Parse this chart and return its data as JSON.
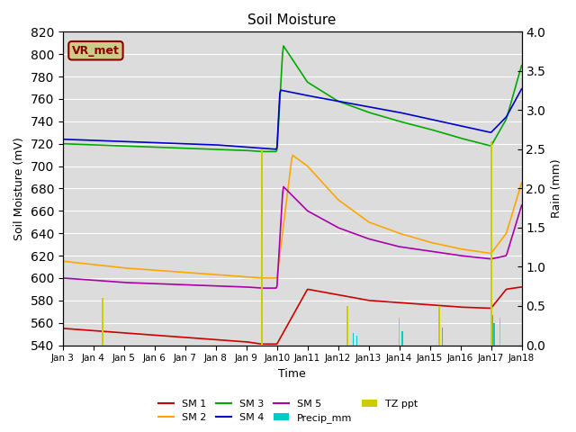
{
  "title": "Soil Moisture",
  "ylabel_left": "Soil Moisture (mV)",
  "ylabel_right": "Rain (mm)",
  "xlabel": "Time",
  "ylim_left": [
    540,
    820
  ],
  "ylim_right": [
    0.0,
    4.0
  ],
  "yticks_left": [
    540,
    560,
    580,
    600,
    620,
    640,
    660,
    680,
    700,
    720,
    740,
    760,
    780,
    800,
    820
  ],
  "yticks_right": [
    0.0,
    0.5,
    1.0,
    1.5,
    2.0,
    2.5,
    3.0,
    3.5,
    4.0
  ],
  "xtick_labels": [
    "Jan 3",
    "Jan 4",
    "Jan 5",
    "Jan 6",
    "Jan 7",
    "Jan 8",
    "Jan 9",
    "Jan 10",
    "Jan 11",
    "Jan 12",
    "Jan 13",
    "Jan 14",
    "Jan 15",
    "Jan 16",
    "Jan 17",
    "Jan 18"
  ],
  "annotation_label": "VR_met",
  "colors": {
    "SM1": "#cc0000",
    "SM2": "#ffa500",
    "SM3": "#00aa00",
    "SM4": "#0000cc",
    "SM5": "#aa00aa",
    "Precip_mm": "#00cccc",
    "TZ_ppt": "#cccc00",
    "bg": "#dcdcdc"
  },
  "n_days": 15,
  "SM1_days": [
    0,
    1,
    2,
    3,
    4,
    5,
    6,
    6.5,
    7,
    8,
    9,
    10,
    11,
    12,
    13,
    14,
    14.5,
    15
  ],
  "SM1_vals": [
    555,
    553,
    551,
    549,
    547,
    545,
    543,
    541,
    541,
    590,
    585,
    580,
    578,
    576,
    574,
    573,
    590,
    592
  ],
  "SM2_days": [
    0,
    1,
    2,
    3,
    4,
    5,
    6,
    6.5,
    7,
    7.5,
    8,
    9,
    10,
    11,
    12,
    13,
    14,
    14.5,
    15
  ],
  "SM2_vals": [
    615,
    612,
    609,
    607,
    605,
    603,
    601,
    600,
    600,
    710,
    700,
    670,
    650,
    640,
    632,
    626,
    622,
    640,
    685
  ],
  "SM3_days": [
    0,
    1,
    2,
    3,
    4,
    5,
    6,
    6.5,
    7,
    7.2,
    8,
    9,
    10,
    11,
    12,
    13,
    14,
    14.5,
    15
  ],
  "SM3_vals": [
    720,
    719,
    718,
    717,
    716,
    715,
    714,
    713,
    713,
    808,
    775,
    758,
    748,
    740,
    733,
    725,
    718,
    742,
    790
  ],
  "SM4_days": [
    0,
    1,
    2,
    3,
    4,
    5,
    6,
    6.5,
    7,
    7.1,
    8,
    9,
    10,
    11,
    12,
    13,
    14,
    14.5,
    15
  ],
  "SM4_vals": [
    724,
    723,
    722,
    721,
    720,
    719,
    717,
    716,
    715,
    768,
    763,
    758,
    753,
    748,
    742,
    736,
    730,
    744,
    769
  ],
  "SM5_days": [
    0,
    1,
    2,
    3,
    4,
    5,
    6,
    6.5,
    7,
    7.2,
    8,
    9,
    10,
    11,
    12,
    13,
    14,
    14.5,
    15
  ],
  "SM5_vals": [
    600,
    598,
    596,
    595,
    594,
    593,
    592,
    591,
    591,
    682,
    660,
    645,
    635,
    628,
    624,
    620,
    617,
    620,
    665
  ],
  "tz_ppt_days": [
    1.3,
    6.5,
    9.3,
    11.0,
    12.3,
    14.0,
    14.0,
    14.3
  ],
  "tz_ppt_vals": [
    0.6,
    2.5,
    0.5,
    0.35,
    0.5,
    2.6,
    0.5,
    0.35
  ],
  "tz_ppt_widths": [
    0.06,
    0.06,
    0.06,
    0.04,
    0.06,
    0.06,
    0.04,
    0.04
  ],
  "precip_days": [
    9.5,
    9.6,
    11.1,
    12.4,
    14.05,
    14.1
  ],
  "precip_vals": [
    0.15,
    0.12,
    0.18,
    0.22,
    0.38,
    0.28
  ],
  "precip_widths": [
    0.04,
    0.03,
    0.04,
    0.04,
    0.04,
    0.04
  ]
}
